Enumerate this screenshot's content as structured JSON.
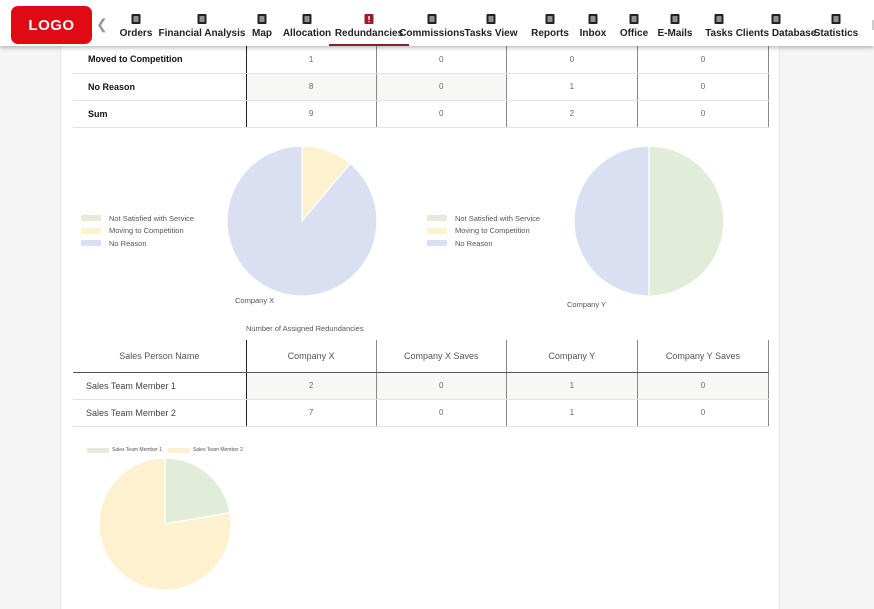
{
  "header": {
    "logo": "LOGO",
    "back_icon": "chevron-left-icon",
    "nav": [
      {
        "label": "Orders",
        "icon": "list-alt-icon"
      },
      {
        "label": "Financial Analysis",
        "icon": "bank-icon"
      },
      {
        "label": "Map",
        "icon": "map-icon"
      },
      {
        "label": "Allocation",
        "icon": "assignment-ind-icon"
      },
      {
        "label": "Redundancies",
        "icon": "assignment-late-icon",
        "active": true
      },
      {
        "label": "Commissions",
        "icon": "assignment-icon"
      },
      {
        "label": "Tasks View",
        "icon": "library-books-icon"
      },
      {
        "label": "Reports",
        "icon": "report-icon"
      },
      {
        "label": "Inbox",
        "icon": "inbox-icon"
      },
      {
        "label": "Office",
        "icon": "briefcase-icon"
      },
      {
        "label": "E-Mails",
        "icon": "mail-icon"
      },
      {
        "label": "Tasks",
        "icon": "tasks-icon"
      },
      {
        "label": "Clients Database",
        "icon": "people-icon"
      },
      {
        "label": "Statistics",
        "icon": "bar-chart-icon"
      }
    ]
  },
  "reasons_table": {
    "rows": [
      {
        "name": "Moved to Competition",
        "values": [
          "1",
          "0",
          "0",
          "0"
        ]
      },
      {
        "name": "No Reason",
        "values": [
          "8",
          "0",
          "1",
          "0"
        ]
      },
      {
        "name": "Sum",
        "values": [
          "9",
          "0",
          "2",
          "0"
        ]
      }
    ]
  },
  "assigned_table": {
    "caption": "Number of Assigned Redundancies",
    "headers": [
      "Sales Person Name",
      "Company X",
      "Company X Saves",
      "Company Y",
      "Company Y Saves"
    ],
    "rows": [
      {
        "name": "Sales Team Member 1",
        "values": [
          "2",
          "0",
          "1",
          "0"
        ]
      },
      {
        "name": "Sales Team Member 2",
        "values": [
          "7",
          "0",
          "1",
          "0"
        ]
      }
    ]
  },
  "chart_data": [
    {
      "type": "pie",
      "title": "Company X",
      "categories": [
        "Not Satisfied with Service",
        "Moving to Competition",
        "No Reason"
      ],
      "values": [
        0,
        1,
        8
      ],
      "colors": [
        "#e1edd9",
        "#fdf1cf",
        "#d9e0f1"
      ],
      "legend": "left"
    },
    {
      "type": "pie",
      "title": "Company Y",
      "categories": [
        "Not Satisfied with Service",
        "Moving to Competition",
        "No Reason"
      ],
      "values": [
        1,
        0,
        1
      ],
      "colors": [
        "#e1edd9",
        "#fdf1cf",
        "#d9e0f1"
      ],
      "legend": "left"
    },
    {
      "type": "pie",
      "title": "",
      "categories": [
        "Sales Team Member 1",
        "Sales Team Member 2"
      ],
      "values": [
        2,
        7
      ],
      "colors": [
        "#e1edd9",
        "#fdf1cf"
      ],
      "legend": "top"
    }
  ]
}
